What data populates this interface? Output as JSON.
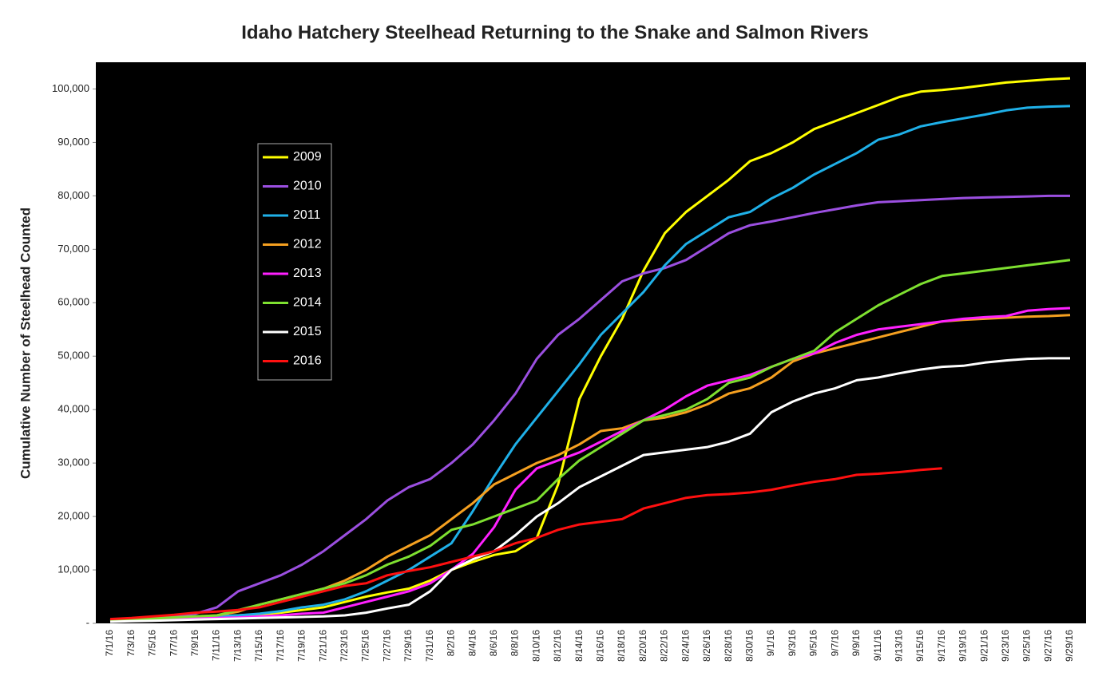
{
  "chart_data": {
    "type": "line",
    "title": "Idaho Hatchery Steelhead Returning to the Snake and Salmon Rivers",
    "y_label": "Cumulative Number of Steelhead Counted",
    "categories": [
      "7/1/16",
      "7/3/16",
      "7/5/16",
      "7/7/16",
      "7/9/16",
      "7/11/16",
      "7/13/16",
      "7/15/16",
      "7/17/16",
      "7/19/16",
      "7/21/16",
      "7/23/16",
      "7/25/16",
      "7/27/16",
      "7/29/16",
      "7/31/16",
      "8/2/16",
      "8/4/16",
      "8/6/16",
      "8/8/16",
      "8/10/16",
      "8/12/16",
      "8/14/16",
      "8/16/16",
      "8/18/16",
      "8/20/16",
      "8/22/16",
      "8/24/16",
      "8/26/16",
      "8/28/16",
      "8/30/16",
      "9/1/16",
      "9/3/16",
      "9/5/16",
      "9/7/16",
      "9/9/16",
      "9/11/16",
      "9/13/16",
      "9/15/16",
      "9/17/16",
      "9/19/16",
      "9/21/16",
      "9/23/16",
      "9/25/16",
      "9/27/16",
      "9/29/16"
    ],
    "ylim": [
      0,
      105000
    ],
    "yticks": [
      {
        "value": 0,
        "label": "-"
      },
      {
        "value": 10000,
        "label": "10,000"
      },
      {
        "value": 20000,
        "label": "20,000"
      },
      {
        "value": 30000,
        "label": "30,000"
      },
      {
        "value": 40000,
        "label": "40,000"
      },
      {
        "value": 50000,
        "label": "50,000"
      },
      {
        "value": 60000,
        "label": "60,000"
      },
      {
        "value": 70000,
        "label": "70,000"
      },
      {
        "value": 80000,
        "label": "80,000"
      },
      {
        "value": 90000,
        "label": "90,000"
      },
      {
        "value": 100000,
        "label": "100,000"
      }
    ],
    "grid": false,
    "background": "#000000",
    "legend": "upper left",
    "series": [
      {
        "name": "2009",
        "color": "#ffff00",
        "values": [
          500,
          600,
          800,
          1000,
          1200,
          1300,
          1500,
          1700,
          2000,
          2500,
          3000,
          4000,
          5000,
          5800,
          6500,
          8000,
          10000,
          11500,
          12800,
          13500,
          16000,
          26000,
          42000,
          50000,
          57000,
          66000,
          73000,
          77000,
          80000,
          83000,
          86500,
          88000,
          90000,
          92500,
          94000,
          95500,
          97000,
          98500,
          99500,
          99800,
          100200,
          100700,
          101200,
          101500,
          101800,
          102000
        ]
      },
      {
        "name": "2010",
        "color": "#9b4fe0",
        "values": [
          500,
          700,
          1000,
          1300,
          1800,
          3000,
          6000,
          7500,
          9000,
          11000,
          13500,
          16500,
          19500,
          23000,
          25500,
          27000,
          30000,
          33500,
          38000,
          43000,
          49500,
          54000,
          57000,
          60500,
          64000,
          65500,
          66500,
          68000,
          70500,
          73000,
          74500,
          75200,
          76000,
          76800,
          77500,
          78200,
          78800,
          79000,
          79200,
          79400,
          79600,
          79700,
          79800,
          79900,
          80000,
          80000
        ]
      },
      {
        "name": "2011",
        "color": "#1fb0e8",
        "values": [
          500,
          600,
          800,
          1000,
          1200,
          1300,
          1500,
          1800,
          2300,
          3000,
          3500,
          4500,
          6000,
          8000,
          10000,
          12500,
          15000,
          21000,
          27500,
          33500,
          38500,
          43500,
          48500,
          54000,
          58000,
          62000,
          67000,
          71000,
          73500,
          76000,
          77000,
          79500,
          81500,
          84000,
          86000,
          88000,
          90500,
          91500,
          93000,
          93800,
          94500,
          95200,
          96000,
          96500,
          96700,
          96800
        ]
      },
      {
        "name": "2012",
        "color": "#f5a020",
        "values": [
          500,
          700,
          900,
          1100,
          1300,
          1500,
          2200,
          3500,
          4500,
          5500,
          6500,
          8000,
          10000,
          12500,
          14500,
          16500,
          19500,
          22500,
          26000,
          28000,
          30000,
          31500,
          33500,
          36000,
          36500,
          38000,
          38500,
          39500,
          41000,
          43000,
          44000,
          46000,
          49000,
          50500,
          51500,
          52500,
          53500,
          54500,
          55500,
          56500,
          56800,
          57000,
          57200,
          57400,
          57500,
          57700
        ]
      },
      {
        "name": "2013",
        "color": "#ff20ff",
        "values": [
          500,
          600,
          700,
          800,
          900,
          1000,
          1100,
          1300,
          1500,
          1800,
          2000,
          3000,
          4000,
          5000,
          6000,
          7500,
          10000,
          13000,
          18000,
          25000,
          29000,
          30500,
          32000,
          34000,
          36000,
          38000,
          40000,
          42500,
          44500,
          45500,
          46500,
          48000,
          49500,
          50500,
          52500,
          54000,
          55000,
          55500,
          56000,
          56500,
          57000,
          57300,
          57500,
          58500,
          58800,
          59000
        ]
      },
      {
        "name": "2014",
        "color": "#7ee030",
        "values": [
          500,
          700,
          900,
          1100,
          1300,
          1500,
          2500,
          3500,
          4500,
          5500,
          6500,
          7500,
          9000,
          11000,
          12500,
          14500,
          17500,
          18500,
          20000,
          21500,
          23000,
          27000,
          30500,
          33000,
          35500,
          38000,
          39000,
          40000,
          42000,
          45000,
          46000,
          48000,
          49500,
          51000,
          54500,
          57000,
          59500,
          61500,
          63500,
          65000,
          65500,
          66000,
          66500,
          67000,
          67500,
          68000
        ]
      },
      {
        "name": "2015",
        "color": "#ffffff",
        "values": [
          300,
          400,
          500,
          600,
          700,
          800,
          900,
          1000,
          1100,
          1200,
          1300,
          1500,
          2000,
          2800,
          3500,
          6000,
          10000,
          12000,
          13500,
          16500,
          20000,
          22500,
          25500,
          27500,
          29500,
          31500,
          32000,
          32500,
          33000,
          34000,
          35500,
          39500,
          41500,
          43000,
          44000,
          45500,
          46000,
          46800,
          47500,
          48000,
          48200,
          48800,
          49200,
          49500,
          49600,
          49600
        ]
      },
      {
        "name": "2016",
        "color": "#ff1010",
        "values": [
          800,
          1000,
          1300,
          1600,
          2000,
          2200,
          2500,
          3000,
          4000,
          5000,
          6000,
          7000,
          7500,
          9000,
          9800,
          10500,
          11500,
          12500,
          13500,
          15000,
          16000,
          17500,
          18500,
          19000,
          19500,
          21500,
          22500,
          23500,
          24000,
          24200,
          24500,
          25000,
          25800,
          26500,
          27000,
          27800,
          28000,
          28300,
          28700,
          29000,
          null,
          null,
          null,
          null,
          null,
          null
        ]
      }
    ]
  }
}
